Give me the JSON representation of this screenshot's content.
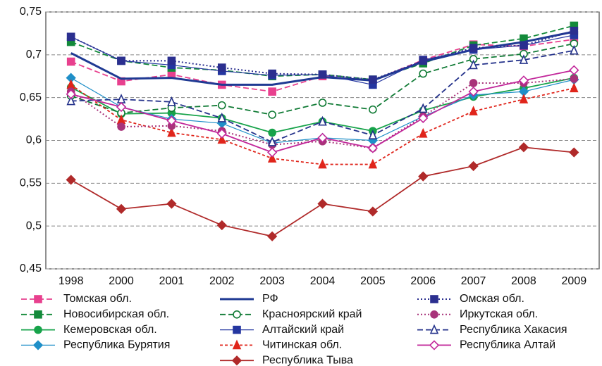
{
  "chart_data": {
    "type": "line",
    "categories": [
      "1998",
      "2000",
      "2001",
      "2002",
      "2003",
      "2004",
      "2005",
      "2006",
      "2007",
      "2008",
      "2009"
    ],
    "ylim": [
      0.45,
      0.75
    ],
    "yticks": [
      {
        "value": 0.45,
        "label": "0,45"
      },
      {
        "value": 0.5,
        "label": "0,5"
      },
      {
        "value": 0.55,
        "label": "0,55"
      },
      {
        "value": 0.6,
        "label": "0,6"
      },
      {
        "value": 0.65,
        "label": "0,65"
      },
      {
        "value": 0.7,
        "label": "0,7"
      },
      {
        "value": 0.75,
        "label": "0,75"
      }
    ],
    "grid": true,
    "legend": "bottom",
    "series": [
      {
        "name": "Томская обл.",
        "color": "#e8408e",
        "marker": "square",
        "filled": true,
        "line_style": "dashed",
        "values": [
          0.692,
          0.669,
          0.677,
          0.665,
          0.657,
          0.675,
          0.67,
          0.694,
          0.712,
          0.71,
          0.718
        ]
      },
      {
        "name": "Новосибирская обл.",
        "color": "#138a3a",
        "marker": "square",
        "filled": true,
        "line_style": "dashed",
        "values": [
          0.715,
          0.693,
          0.685,
          0.682,
          0.675,
          0.677,
          0.671,
          0.69,
          0.711,
          0.719,
          0.734
        ]
      },
      {
        "name": "Кемеровская обл.",
        "color": "#17a34a",
        "marker": "circle",
        "filled": true,
        "line_style": "solid",
        "values": [
          0.662,
          0.631,
          0.632,
          0.626,
          0.609,
          0.622,
          0.611,
          0.635,
          0.651,
          0.661,
          0.673
        ]
      },
      {
        "name": "Республика Бурятия",
        "color": "#1f8fc8",
        "marker": "diamond",
        "filled": true,
        "line_style": "thin",
        "values": [
          0.673,
          0.639,
          0.625,
          0.62,
          0.597,
          0.603,
          0.6,
          0.628,
          0.653,
          0.657,
          0.671
        ]
      },
      {
        "name": "РФ",
        "color": "#1f3a93",
        "marker": "none",
        "filled": true,
        "line_style": "thick",
        "values": [
          0.702,
          0.672,
          0.673,
          0.665,
          0.665,
          0.674,
          0.67,
          0.692,
          0.706,
          0.715,
          0.727
        ]
      },
      {
        "name": "Красноярский край",
        "color": "#0f7a34",
        "marker": "circle",
        "filled": false,
        "line_style": "dashed",
        "values": [
          0.652,
          0.632,
          0.638,
          0.641,
          0.63,
          0.644,
          0.636,
          0.678,
          0.695,
          0.701,
          0.713
        ]
      },
      {
        "name": "Алтайский край",
        "color": "#2436a0",
        "marker": "square",
        "filled": true,
        "line_style": "thin",
        "values": [
          0.721,
          0.693,
          0.688,
          0.681,
          0.676,
          0.677,
          0.665,
          0.694,
          0.706,
          0.711,
          0.723
        ]
      },
      {
        "name": "Читинская обл.",
        "color": "#e0251b",
        "marker": "triangle",
        "filled": true,
        "line_style": "short-dashed",
        "values": [
          0.665,
          0.624,
          0.609,
          0.601,
          0.579,
          0.572,
          0.572,
          0.608,
          0.634,
          0.648,
          0.661
        ]
      },
      {
        "name": "Республика Тыва",
        "color": "#b02a2a",
        "marker": "diamond",
        "filled": true,
        "line_style": "solid",
        "values": [
          0.554,
          0.52,
          0.526,
          0.501,
          0.488,
          0.526,
          0.517,
          0.558,
          0.57,
          0.592,
          0.586
        ]
      },
      {
        "name": "Омская обл.",
        "color": "#2b2f8f",
        "marker": "square",
        "filled": true,
        "line_style": "dotted",
        "values": [
          0.721,
          0.693,
          0.693,
          0.685,
          0.678,
          0.677,
          0.671,
          0.693,
          0.708,
          0.711,
          0.728
        ]
      },
      {
        "name": "Иркутская обл.",
        "color": "#a8337a",
        "marker": "circle",
        "filled": true,
        "line_style": "dotted",
        "values": [
          0.657,
          0.616,
          0.617,
          0.611,
          0.595,
          0.599,
          0.591,
          0.628,
          0.667,
          0.667,
          0.672
        ]
      },
      {
        "name": "Республика Хакасия",
        "color": "#23318a",
        "marker": "triangle",
        "filled": false,
        "line_style": "dashed",
        "values": [
          0.646,
          0.648,
          0.645,
          0.626,
          0.598,
          0.622,
          0.606,
          0.637,
          0.688,
          0.694,
          0.705
        ]
      },
      {
        "name": "Республика Алтай",
        "color": "#c2279a",
        "marker": "diamond",
        "filled": false,
        "line_style": "solid",
        "values": [
          0.654,
          0.639,
          0.623,
          0.608,
          0.586,
          0.603,
          0.591,
          0.626,
          0.657,
          0.67,
          0.682
        ]
      }
    ]
  }
}
